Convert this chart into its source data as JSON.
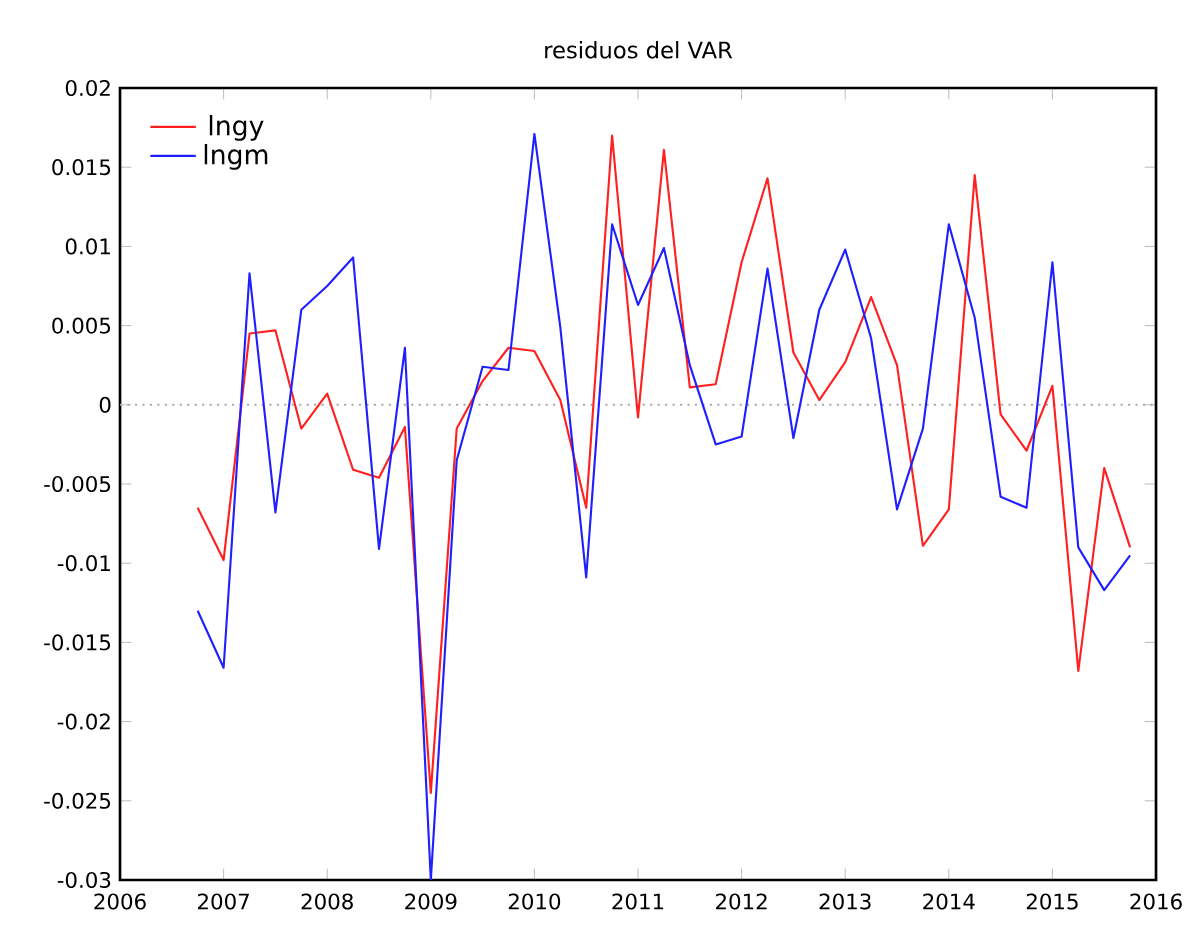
{
  "chart_data": {
    "type": "line",
    "title": "residuos del VAR",
    "x": [
      2006.75,
      2007,
      2007.25,
      2007.5,
      2007.75,
      2008,
      2008.25,
      2008.5,
      2008.75,
      2009,
      2009.25,
      2009.5,
      2009.75,
      2010,
      2010.25,
      2010.5,
      2010.75,
      2011,
      2011.25,
      2011.5,
      2011.75,
      2012,
      2012.25,
      2012.5,
      2012.75,
      2013,
      2013.25,
      2013.5,
      2013.75,
      2014,
      2014.25,
      2014.5,
      2014.75,
      2015,
      2015.25,
      2015.5,
      2015.75
    ],
    "series": [
      {
        "name": "lngy",
        "color": "#ff2020",
        "values": [
          -0.0065,
          -0.0098,
          0.0045,
          0.0047,
          -0.0015,
          0.0007,
          -0.0041,
          -0.0046,
          -0.0014,
          -0.0245,
          -0.0015,
          0.0015,
          0.0036,
          0.0034,
          0.0003,
          -0.0065,
          0.017,
          -0.0008,
          0.0161,
          0.0011,
          0.0013,
          0.009,
          0.0143,
          0.0033,
          0.0003,
          0.0027,
          0.0068,
          0.0025,
          -0.0089,
          -0.0066,
          0.0145,
          -0.0006,
          -0.0029,
          0.0012,
          -0.0168,
          -0.004,
          -0.009
        ]
      },
      {
        "name": "lngm",
        "color": "#2020ff",
        "values": [
          -0.013,
          -0.0166,
          0.0083,
          -0.0068,
          0.006,
          0.0075,
          0.0093,
          -0.0091,
          0.0036,
          -0.03,
          -0.0035,
          0.0024,
          0.0022,
          0.0171,
          0.0049,
          -0.0109,
          0.0114,
          0.0063,
          0.0099,
          0.0025,
          -0.0025,
          -0.002,
          0.0086,
          -0.0021,
          0.006,
          0.0098,
          0.0042,
          -0.0066,
          -0.0015,
          0.0114,
          0.0055,
          -0.0058,
          -0.0065,
          0.009,
          -0.009,
          -0.0117,
          -0.0095
        ]
      }
    ],
    "xlim": [
      2006,
      2016
    ],
    "xticks": [
      2006,
      2007,
      2008,
      2009,
      2010,
      2011,
      2012,
      2013,
      2014,
      2015,
      2016
    ],
    "ylim": [
      -0.03,
      0.02
    ],
    "yticks": [
      -0.03,
      -0.025,
      -0.02,
      -0.015,
      -0.01,
      -0.005,
      0,
      0.005,
      0.01,
      0.015,
      0.02
    ],
    "ref_lines": [
      {
        "axis": "y",
        "value": 0,
        "color": "#aaaaaa",
        "line_style": "dotted"
      }
    ],
    "legend": "top left",
    "grid": false,
    "marker": "none",
    "line_style": "solid"
  }
}
